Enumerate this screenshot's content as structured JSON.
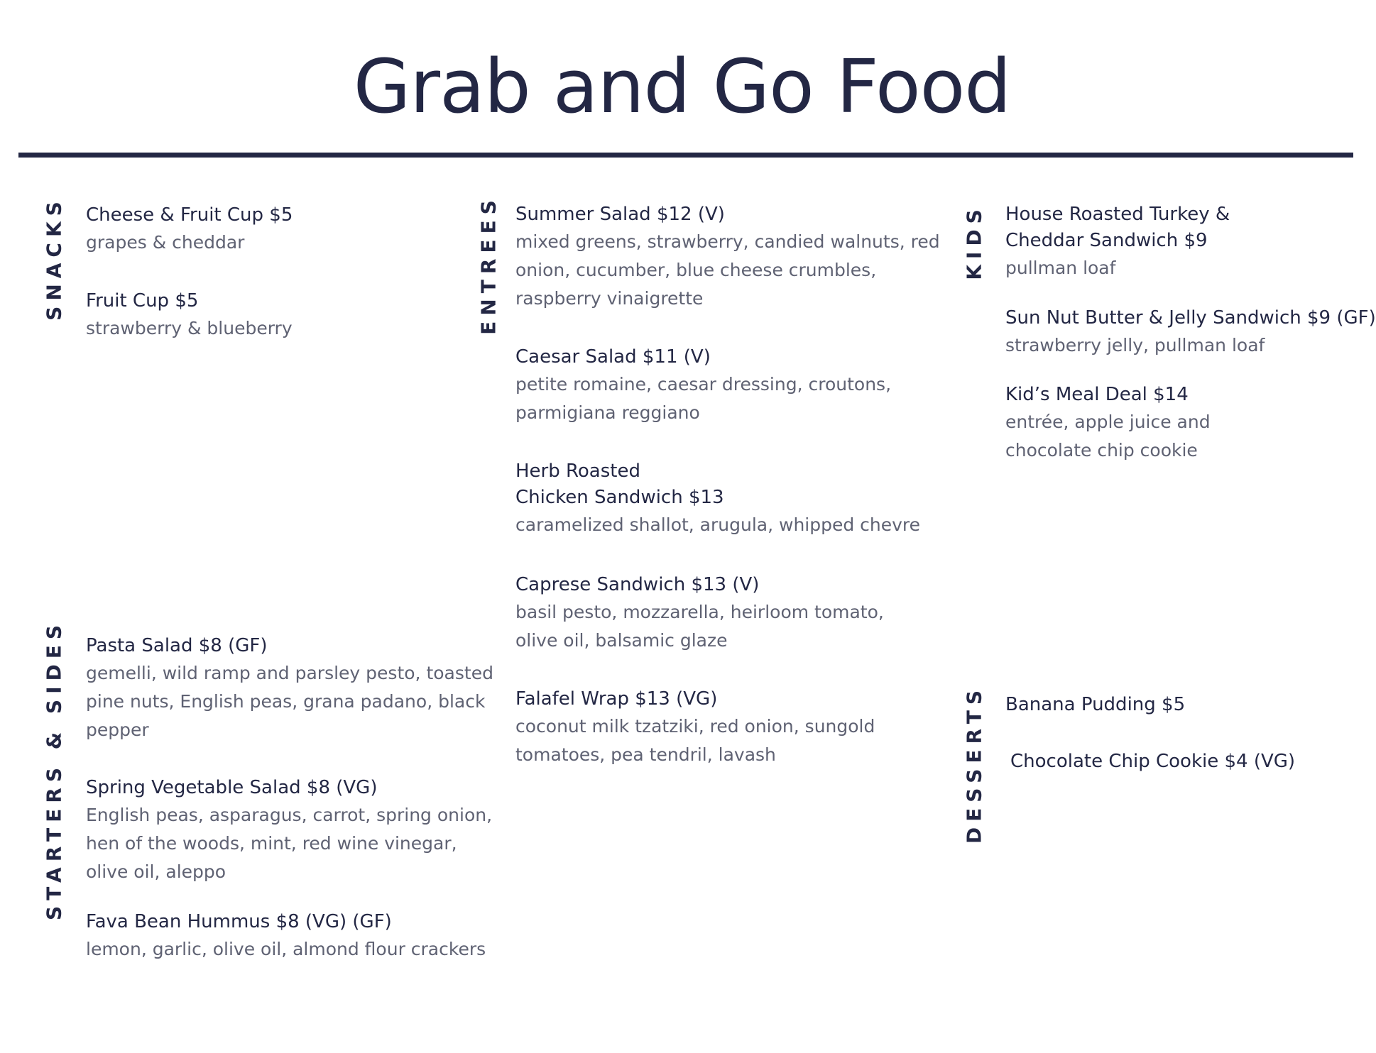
{
  "title": "Grab and Go Food",
  "sections": {
    "snacks": {
      "label": "SNACKS",
      "items": [
        {
          "name": "Cheese & Fruit Cup $5",
          "desc": [
            "grapes & cheddar"
          ]
        },
        {
          "name": "Fruit Cup $5",
          "desc": [
            "strawberry & blueberry"
          ]
        }
      ]
    },
    "starters": {
      "label": "STARTERS & SIDES",
      "items": [
        {
          "name": "Pasta Salad $8 (GF)",
          "desc": [
            "gemelli, wild ramp and parsley pesto, toasted",
            "pine nuts, English peas, grana padano, black",
            "pepper"
          ]
        },
        {
          "name": "Spring Vegetable Salad $8 (VG)",
          "desc": [
            "English peas, asparagus, carrot, spring onion,",
            "hen of the woods, mint, red wine vinegar,",
            "olive oil, aleppo"
          ]
        },
        {
          "name": "Fava Bean Hummus $8 (VG) (GF)",
          "desc": [
            "lemon, garlic, olive oil, almond flour crackers"
          ]
        }
      ]
    },
    "entrees": {
      "label": "ENTREES",
      "items": [
        {
          "name": "Summer Salad $12 (V)",
          "desc": [
            "mixed greens, strawberry, candied walnuts, red",
            "onion, cucumber, blue cheese crumbles,",
            "raspberry vinaigrette"
          ]
        },
        {
          "name": "Caesar Salad $11 (V)",
          "desc": [
            "petite romaine, caesar dressing, croutons,",
            "parmigiana reggiano"
          ]
        },
        {
          "name": "Herb Roasted",
          "name2": "Chicken Sandwich $13",
          "desc": [
            "caramelized shallot, arugula, whipped chevre"
          ]
        },
        {
          "name": "Caprese Sandwich $13 (V)",
          "desc": [
            "basil pesto, mozzarella, heirloom tomato,",
            "olive oil, balsamic glaze"
          ]
        },
        {
          "name": "Falafel Wrap $13 (VG)",
          "desc": [
            "coconut milk tzatziki, red onion, sungold",
            "tomatoes, pea tendril, lavash"
          ]
        }
      ]
    },
    "kids": {
      "label": "KIDS",
      "items": [
        {
          "name": "House Roasted Turkey &",
          "name2": "Cheddar Sandwich $9",
          "desc": [
            "pullman loaf"
          ]
        },
        {
          "name": "Sun Nut Butter & Jelly Sandwich $9 (GF)",
          "desc": [
            "strawberry jelly, pullman loaf"
          ]
        },
        {
          "name": "Kid’s Meal Deal $14",
          "desc": [
            "entrée, apple juice and",
            "chocolate chip cookie"
          ]
        }
      ]
    },
    "desserts": {
      "label": "DESSERTS",
      "items": [
        {
          "name": "Banana Pudding $5"
        },
        {
          "name": "Chocolate Chip Cookie $4 (VG)"
        }
      ]
    }
  }
}
